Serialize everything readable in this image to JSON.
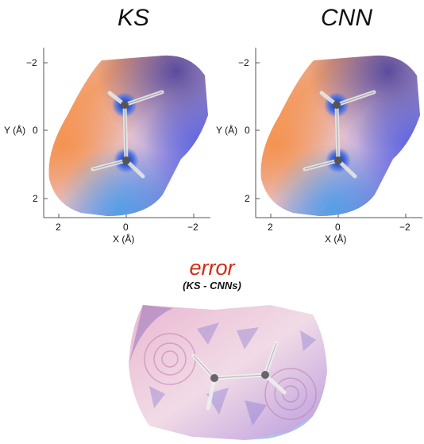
{
  "panels": [
    {
      "title": "KS",
      "x_label": "X (Å)",
      "y_label": "Y (Å)",
      "x_ticks": [
        "2",
        "0",
        "−2"
      ],
      "y_ticks": [
        "−2",
        "0",
        "2"
      ]
    },
    {
      "title": "CNN",
      "x_label": "X (Å)",
      "y_label": "Y (Å)",
      "x_ticks": [
        "2",
        "0",
        "−2"
      ],
      "y_ticks": [
        "−2",
        "0",
        "2"
      ]
    }
  ],
  "error_panel": {
    "title": "error",
    "subtitle": "(KS - CNNs)"
  },
  "colors": {
    "error_title": "#d62a12",
    "surface_warm": "#f29a63",
    "surface_cool": "#5a6fd8",
    "surface_magenta": "#c25a9a",
    "surface_light": "#f4e8ee",
    "molecule_bond": "#d9d9d9"
  }
}
